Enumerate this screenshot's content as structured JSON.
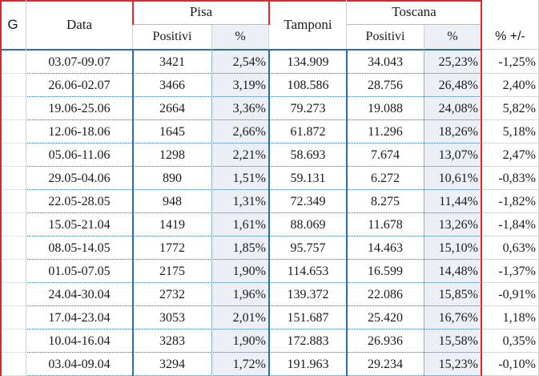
{
  "header": {
    "g": "G",
    "data": "Data",
    "pisa": "Pisa",
    "pisa_positivi": "Positivi",
    "pisa_pct": "%",
    "tamponi": "Tamponi",
    "toscana": "Toscana",
    "toscana_positivi": "Positivi",
    "toscana_pct": "%",
    "delta": "% +/-"
  },
  "rows": [
    {
      "data": "03.07-09.07",
      "pisa_pos": "3421",
      "pisa_pct": "2,54%",
      "tamponi": "134.909",
      "tos_pos": "34.043",
      "tos_pct": "25,23%",
      "delta": "-1,25%"
    },
    {
      "data": "26.06-02.07",
      "pisa_pos": "3466",
      "pisa_pct": "3,19%",
      "tamponi": "108.586",
      "tos_pos": "28.756",
      "tos_pct": "26,48%",
      "delta": "2,40%"
    },
    {
      "data": "19.06-25.06",
      "pisa_pos": "2664",
      "pisa_pct": "3,36%",
      "tamponi": "79.273",
      "tos_pos": "19.088",
      "tos_pct": "24,08%",
      "delta": "5,82%"
    },
    {
      "data": "12.06-18.06",
      "pisa_pos": "1645",
      "pisa_pct": "2,66%",
      "tamponi": "61.872",
      "tos_pos": "11.296",
      "tos_pct": "18,26%",
      "delta": "5,18%"
    },
    {
      "data": "05.06-11.06",
      "pisa_pos": "1298",
      "pisa_pct": "2,21%",
      "tamponi": "58.693",
      "tos_pos": "7.674",
      "tos_pct": "13,07%",
      "delta": "2,47%"
    },
    {
      "data": "29.05-04.06",
      "pisa_pos": "890",
      "pisa_pct": "1,51%",
      "tamponi": "59.131",
      "tos_pos": "6.272",
      "tos_pct": "10,61%",
      "delta": "-0,83%"
    },
    {
      "data": "22.05-28.05",
      "pisa_pos": "948",
      "pisa_pct": "1,31%",
      "tamponi": "72.349",
      "tos_pos": "8.275",
      "tos_pct": "11,44%",
      "delta": "-1,82%"
    },
    {
      "data": "15.05-21.04",
      "pisa_pos": "1419",
      "pisa_pct": "1,61%",
      "tamponi": "88.069",
      "tos_pos": "11.678",
      "tos_pct": "13,26%",
      "delta": "-1,84%"
    },
    {
      "data": "08.05-14.05",
      "pisa_pos": "1772",
      "pisa_pct": "1,85%",
      "tamponi": "95.757",
      "tos_pos": "14.463",
      "tos_pct": "15,10%",
      "delta": "0,63%"
    },
    {
      "data": "01.05-07.05",
      "pisa_pos": "2175",
      "pisa_pct": "1,90%",
      "tamponi": "114.653",
      "tos_pos": "16.599",
      "tos_pct": "14,48%",
      "delta": "-1,37%"
    },
    {
      "data": "24.04-30.04",
      "pisa_pos": "2732",
      "pisa_pct": "1,96%",
      "tamponi": "139.372",
      "tos_pos": "22.086",
      "tos_pct": "15,85%",
      "delta": "-0,91%"
    },
    {
      "data": "17.04-23.04",
      "pisa_pos": "3053",
      "pisa_pct": "2,01%",
      "tamponi": "151.687",
      "tos_pos": "25.420",
      "tos_pct": "16,76%",
      "delta": "1,18%"
    },
    {
      "data": "10.04-16.04",
      "pisa_pos": "3283",
      "pisa_pct": "1,90%",
      "tamponi": "172.883",
      "tos_pos": "26.936",
      "tos_pct": "15,58%",
      "delta": "0,35%"
    },
    {
      "data": "03.04-09.04",
      "pisa_pos": "3294",
      "pisa_pct": "1,72%",
      "tamponi": "191.963",
      "tos_pos": "29.234",
      "tos_pct": "15,23%",
      "delta": "-0,10%"
    }
  ],
  "colors": {
    "header_rule": "#2e6da4",
    "frame_red": "#e0262a",
    "pct_shade": "#eceff5"
  }
}
